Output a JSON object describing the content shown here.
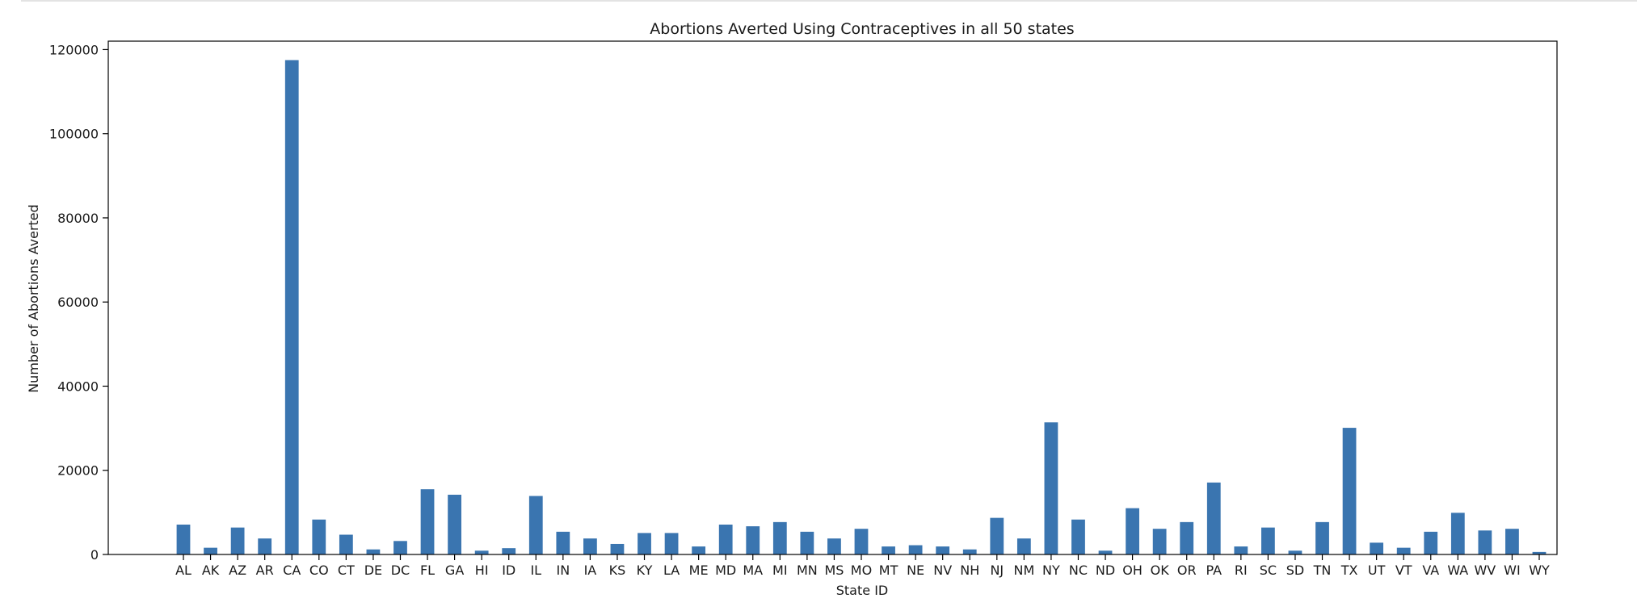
{
  "chart_data": {
    "type": "bar",
    "title": "Abortions Averted Using Contraceptives in all 50 states",
    "xlabel": "State ID",
    "ylabel": "Number of Abortions Averted",
    "ylim": [
      0,
      122000
    ],
    "yticks": [
      0,
      20000,
      40000,
      60000,
      80000,
      100000,
      120000
    ],
    "grid": false,
    "color": "#3a75b0",
    "categories": [
      "AL",
      "AK",
      "AZ",
      "AR",
      "CA",
      "CO",
      "CT",
      "DE",
      "DC",
      "FL",
      "GA",
      "HI",
      "ID",
      "IL",
      "IN",
      "IA",
      "KS",
      "KY",
      "LA",
      "ME",
      "MD",
      "MA",
      "MI",
      "MN",
      "MS",
      "MO",
      "MT",
      "NE",
      "NV",
      "NH",
      "NJ",
      "NM",
      "NY",
      "NC",
      "ND",
      "OH",
      "OK",
      "OR",
      "PA",
      "RI",
      "SC",
      "SD",
      "TN",
      "TX",
      "UT",
      "VT",
      "VA",
      "WA",
      "WV",
      "WI",
      "WY"
    ],
    "values": [
      7100,
      1600,
      6400,
      3800,
      117500,
      8300,
      4700,
      1200,
      3200,
      15500,
      14200,
      900,
      1500,
      13900,
      5400,
      3800,
      2500,
      5100,
      5100,
      1900,
      7100,
      6700,
      7700,
      5400,
      3800,
      6100,
      1900,
      2200,
      1900,
      1200,
      8700,
      3800,
      31400,
      8300,
      900,
      11000,
      6100,
      7700,
      17100,
      1900,
      6400,
      900,
      7700,
      30100,
      2800,
      1600,
      5400,
      9900,
      5700,
      6100,
      600
    ]
  }
}
